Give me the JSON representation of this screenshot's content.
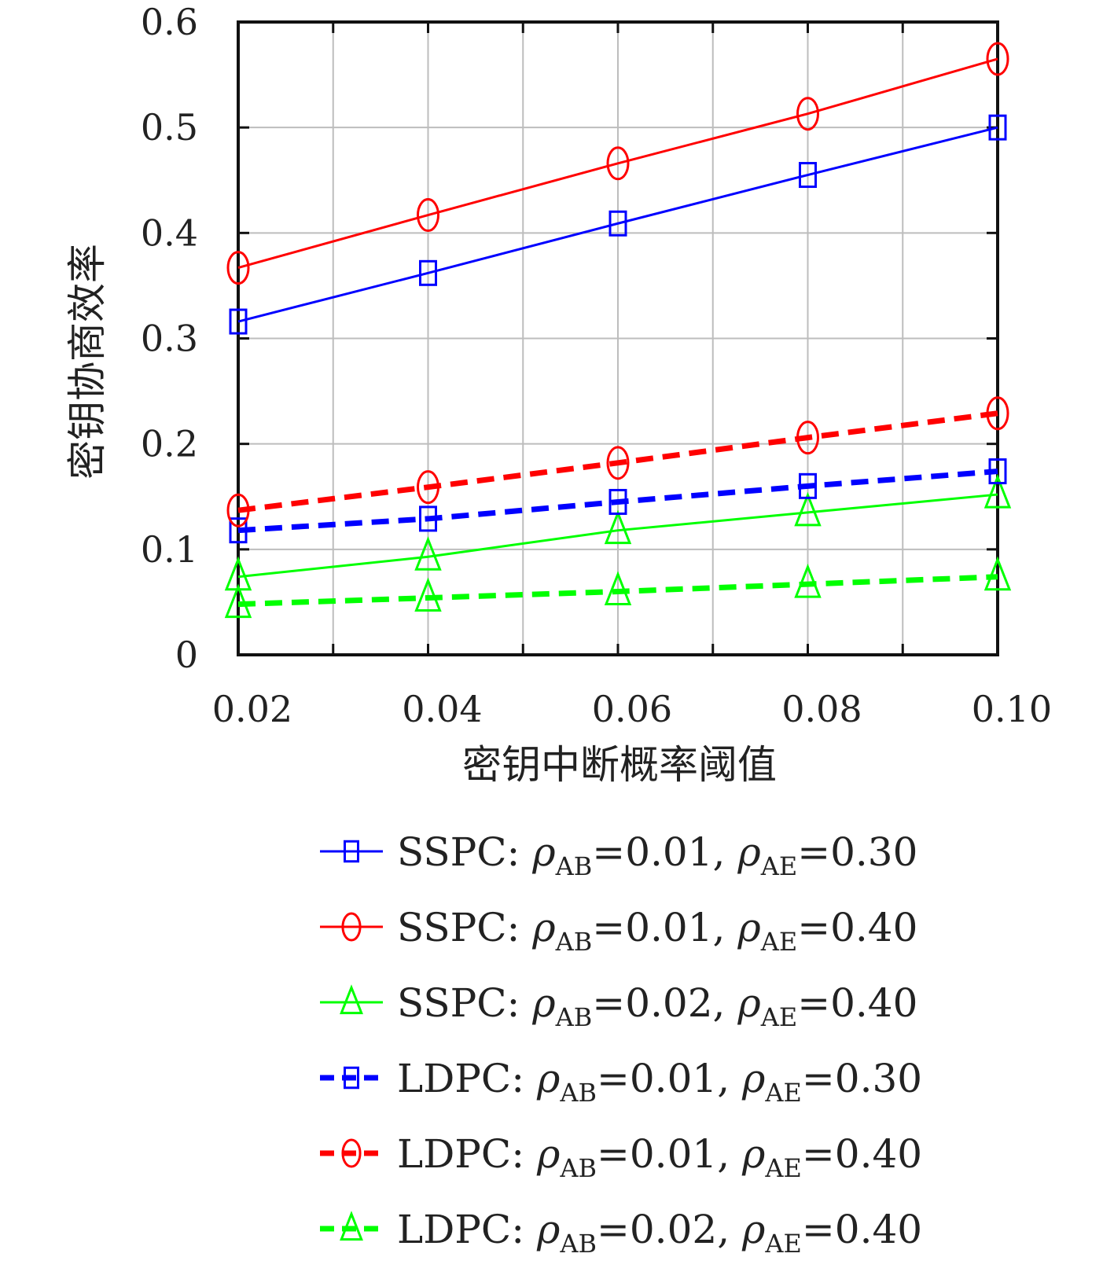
{
  "chart_data": {
    "type": "line",
    "title": "",
    "xlabel": "密钥中断概率阈值",
    "ylabel": "密钥协商效率",
    "x": [
      0.02,
      0.04,
      0.06,
      0.08,
      0.1
    ],
    "xticks": [
      "0.02",
      "0.04",
      "0.06",
      "0.08",
      "0.10"
    ],
    "yticks": [
      "0",
      "0.1",
      "0.2",
      "0.3",
      "0.4",
      "0.5",
      "0.6"
    ],
    "xlim": [
      0.02,
      0.1
    ],
    "ylim": [
      0,
      0.6
    ],
    "grid": true,
    "legend_position": "below",
    "series": [
      {
        "method": "SSPC",
        "rho_ab": "0.01",
        "rho_ae": "0.30",
        "color": "#0000ff",
        "marker": "square",
        "style": "solid",
        "values": [
          0.316,
          0.362,
          0.409,
          0.455,
          0.5
        ]
      },
      {
        "method": "SSPC",
        "rho_ab": "0.01",
        "rho_ae": "0.40",
        "color": "#ff0000",
        "marker": "circle",
        "style": "solid",
        "values": [
          0.367,
          0.417,
          0.466,
          0.513,
          0.565
        ]
      },
      {
        "method": "SSPC",
        "rho_ab": "0.02",
        "rho_ae": "0.40",
        "color": "#00ff00",
        "marker": "triangle",
        "style": "solid",
        "values": [
          0.074,
          0.093,
          0.118,
          0.135,
          0.152
        ]
      },
      {
        "method": "LDPC",
        "rho_ab": "0.01",
        "rho_ae": "0.30",
        "color": "#0000ff",
        "marker": "square",
        "style": "dashed",
        "values": [
          0.118,
          0.129,
          0.145,
          0.16,
          0.174
        ]
      },
      {
        "method": "LDPC",
        "rho_ab": "0.01",
        "rho_ae": "0.40",
        "color": "#ff0000",
        "marker": "circle",
        "style": "dashed",
        "values": [
          0.137,
          0.159,
          0.182,
          0.206,
          0.229
        ]
      },
      {
        "method": "LDPC",
        "rho_ab": "0.02",
        "rho_ae": "0.40",
        "color": "#00ff00",
        "marker": "triangle",
        "style": "dashed",
        "values": [
          0.048,
          0.054,
          0.06,
          0.067,
          0.074
        ]
      }
    ],
    "legend": {
      "rho_symbol": "ρ",
      "sub_ab": "AB",
      "sub_ae": "AE",
      "equals": "=",
      "separator": ",",
      "colon": ":"
    }
  }
}
